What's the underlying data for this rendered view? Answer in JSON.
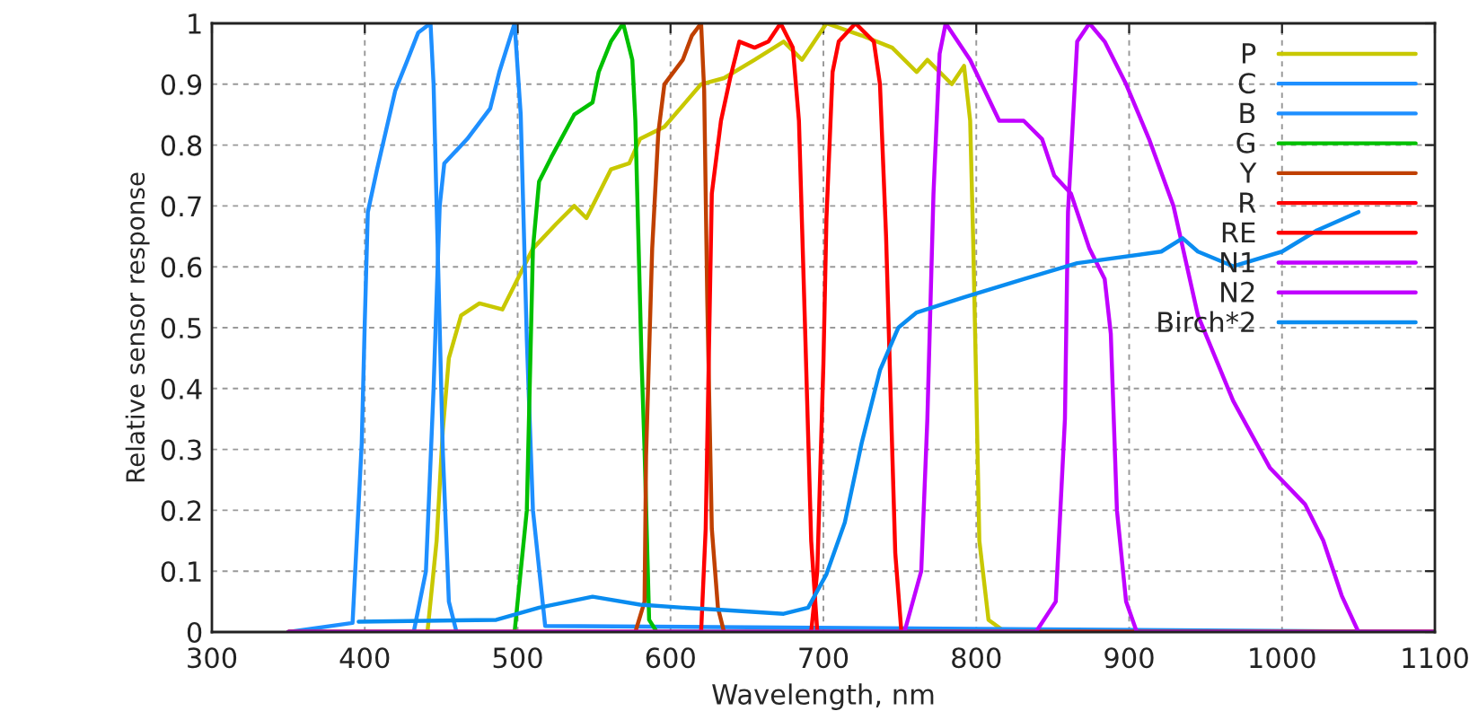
{
  "chart_data": {
    "type": "line",
    "xlabel": "Wavelength, nm",
    "ylabel": "Relative sensor response",
    "xlim": [
      300,
      1100
    ],
    "ylim": [
      0,
      1
    ],
    "xticks": [
      300,
      400,
      500,
      600,
      700,
      800,
      900,
      1000,
      1100
    ],
    "yticks": [
      0,
      0.1,
      0.2,
      0.3,
      0.4,
      0.5,
      0.6,
      0.7,
      0.8,
      0.9,
      1
    ],
    "grid": true,
    "legend": "top right",
    "line_style": "solid",
    "marker": "none",
    "series": [
      {
        "name": "P",
        "color": "#c8c800",
        "x": [
          350,
          441,
          447,
          451,
          455,
          463,
          475,
          490,
          498,
          510,
          525,
          537,
          545,
          561,
          573,
          580,
          596,
          620,
          635,
          655,
          674,
          686,
          702,
          725,
          745,
          761,
          768,
          784,
          792,
          796,
          798,
          800,
          802,
          808,
          819,
          1100
        ],
        "values": [
          0,
          0,
          0.15,
          0.33,
          0.45,
          0.52,
          0.54,
          0.53,
          0.57,
          0.63,
          0.67,
          0.7,
          0.68,
          0.76,
          0.77,
          0.81,
          0.83,
          0.9,
          0.91,
          0.94,
          0.97,
          0.94,
          1.0,
          0.98,
          0.96,
          0.92,
          0.94,
          0.9,
          0.93,
          0.84,
          0.64,
          0.4,
          0.15,
          0.02,
          0,
          0
        ]
      },
      {
        "name": "C",
        "color": "#1e8fff",
        "x": [
          350,
          392,
          398,
          400,
          402,
          408,
          420,
          428,
          435,
          443,
          445,
          448,
          451,
          455,
          460,
          1100
        ],
        "values": [
          0,
          0.015,
          0.31,
          0.51,
          0.69,
          0.76,
          0.89,
          0.94,
          0.985,
          1.0,
          0.9,
          0.6,
          0.3,
          0.05,
          0,
          0
        ]
      },
      {
        "name": "B",
        "color": "#1e8fff",
        "x": [
          350,
          432,
          440,
          445,
          449,
          452,
          467,
          482,
          488,
          498,
          502,
          506,
          510,
          518,
          1100
        ],
        "values": [
          0,
          0,
          0.1,
          0.4,
          0.7,
          0.77,
          0.81,
          0.86,
          0.92,
          1.0,
          0.85,
          0.48,
          0.2,
          0.01,
          0
        ]
      },
      {
        "name": "G",
        "color": "#00c000",
        "x": [
          350,
          498,
          506,
          510,
          514,
          522,
          537,
          549,
          553,
          561,
          569,
          575,
          577,
          581,
          583,
          586,
          591,
          1100
        ],
        "values": [
          0,
          0,
          0.2,
          0.63,
          0.74,
          0.78,
          0.85,
          0.87,
          0.92,
          0.97,
          1.0,
          0.94,
          0.84,
          0.45,
          0.3,
          0.02,
          0,
          0
        ]
      },
      {
        "name": "Y",
        "color": "#c04000",
        "x": [
          350,
          577,
          583,
          584,
          588,
          592,
          596,
          608,
          614,
          620,
          622,
          624,
          627,
          631,
          635,
          1100
        ],
        "values": [
          0,
          0,
          0.05,
          0.29,
          0.63,
          0.82,
          0.9,
          0.94,
          0.98,
          1.0,
          0.89,
          0.55,
          0.17,
          0.04,
          0,
          0
        ]
      },
      {
        "name": "R",
        "color": "#ff0000",
        "x": [
          350,
          620,
          623,
          627,
          633,
          639,
          645,
          655,
          664,
          672,
          680,
          684,
          688,
          692,
          696,
          1100
        ],
        "values": [
          0,
          0,
          0.17,
          0.72,
          0.84,
          0.91,
          0.97,
          0.96,
          0.97,
          1.0,
          0.96,
          0.84,
          0.5,
          0.15,
          0,
          0
        ]
      },
      {
        "name": "RE",
        "color": "#ff0000",
        "x": [
          350,
          692,
          696,
          700,
          702,
          706,
          710,
          721,
          733,
          737,
          741,
          745,
          747,
          751,
          1100
        ],
        "values": [
          0,
          0,
          0.1,
          0.44,
          0.68,
          0.92,
          0.97,
          1.0,
          0.97,
          0.9,
          0.65,
          0.3,
          0.13,
          0,
          0
        ]
      },
      {
        "name": "N1",
        "color": "#c000ff",
        "x": [
          350,
          753,
          764,
          768,
          772,
          776,
          780,
          796,
          815,
          831,
          843,
          851,
          862,
          874,
          884,
          888,
          892,
          898,
          905,
          1100
        ],
        "values": [
          0,
          0,
          0.1,
          0.35,
          0.72,
          0.95,
          1.0,
          0.94,
          0.84,
          0.84,
          0.81,
          0.75,
          0.72,
          0.63,
          0.58,
          0.49,
          0.2,
          0.05,
          0,
          0
        ]
      },
      {
        "name": "N2",
        "color": "#c000ff",
        "x": [
          350,
          839,
          852,
          858,
          860,
          866,
          874,
          884,
          898,
          913,
          929,
          945,
          968,
          992,
          1015,
          1027,
          1039,
          1050,
          1100
        ],
        "values": [
          0,
          0,
          0.05,
          0.35,
          0.69,
          0.97,
          1.0,
          0.97,
          0.9,
          0.81,
          0.7,
          0.52,
          0.38,
          0.27,
          0.21,
          0.15,
          0.06,
          0,
          0
        ]
      },
      {
        "name": "Birch*2",
        "color": "#0a8cf0",
        "x": [
          396,
          486,
          514,
          549,
          580,
          608,
          635,
          674,
          690,
          702,
          714,
          725,
          737,
          749,
          761,
          792,
          831,
          866,
          921,
          935,
          945,
          968,
          1000,
          1023,
          1050
        ],
        "values": [
          0.017,
          0.02,
          0.04,
          0.058,
          0.045,
          0.04,
          0.036,
          0.03,
          0.04,
          0.095,
          0.18,
          0.31,
          0.43,
          0.5,
          0.525,
          0.55,
          0.58,
          0.606,
          0.625,
          0.647,
          0.625,
          0.601,
          0.625,
          0.66,
          0.69
        ]
      }
    ]
  }
}
